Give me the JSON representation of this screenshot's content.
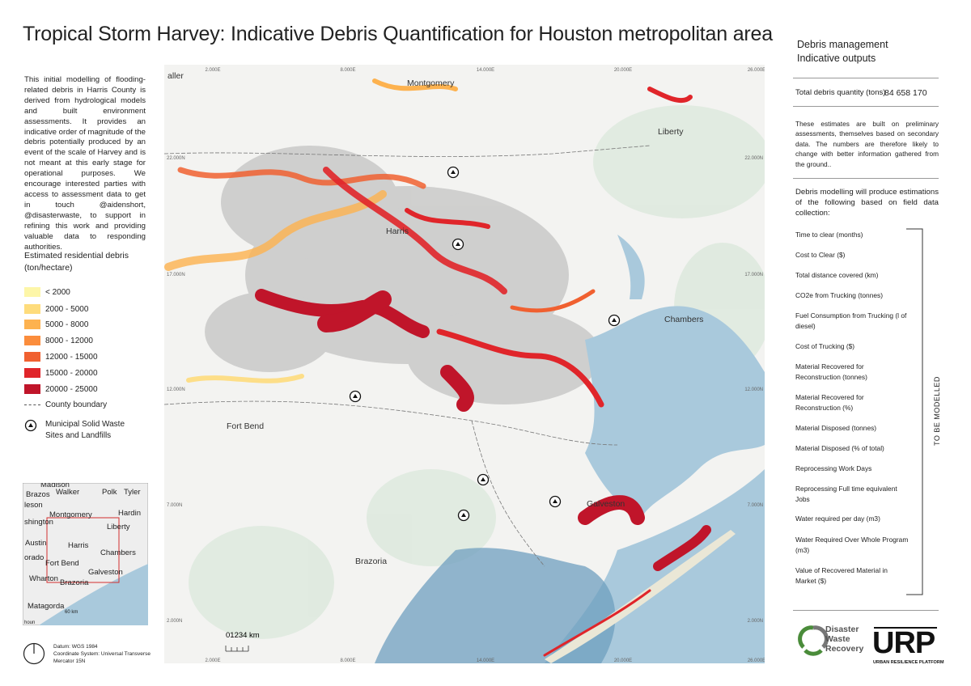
{
  "header": {
    "title": "Tropical Storm Harvey: Indicative Debris Quantification for Houston metropolitan area"
  },
  "intro": "This initial modelling of flooding-related debris in Harris County is derived from hydrological models and built environment assessments. It provides an indicative order of magnitude of the debris potentially produced by an event of the scale of Harvey and is not meant at this early stage for operational purposes. We encourage interested parties with access to assessment data to get in touch @aidenshort, @disasterwaste, to support in refining this work and providing valuable data to responding authorities.",
  "legend": {
    "title": "Estimated residential debris (ton/hectare)",
    "items": [
      {
        "label": "< 2000",
        "color": "#fdf6a8"
      },
      {
        "label": "2000 - 5000",
        "color": "#fedc7c"
      },
      {
        "label": "5000 - 8000",
        "color": "#fdb24f"
      },
      {
        "label": "8000 - 12000",
        "color": "#fb8d3c"
      },
      {
        "label": "12000 - 15000",
        "color": "#f06030"
      },
      {
        "label": "15000 - 20000",
        "color": "#e0252a"
      },
      {
        "label": "20000 - 25000",
        "color": "#c0152a"
      }
    ],
    "county_boundary": "County boundary",
    "msw_sites": "Municipal Solid Waste Sites and Landfills"
  },
  "map": {
    "place_labels": [
      "aller",
      "Montgomery",
      "Liberty",
      "Harris",
      "Chambers",
      "Fort Bend",
      "Galveston",
      "Brazoria"
    ],
    "x_coords": [
      "2.000E",
      "8.000E",
      "14.000E",
      "20.000E",
      "26.000E"
    ],
    "y_coords": [
      "22.000N",
      "17.000N",
      "12.000N",
      "7.000N",
      "2.000N"
    ],
    "scale": "01234 km"
  },
  "inset": {
    "labels": [
      "Madison",
      "Brazos",
      "Walker",
      "Polk",
      "Tyler",
      "leson",
      "Montgomery",
      "Hardin",
      "shington",
      "Liberty",
      "Austin",
      "Harris",
      "orado",
      "Chambers",
      "Fort Bend",
      "Galveston",
      "Wharton",
      "Brazoria",
      "Matagorda",
      "60 km",
      "houn"
    ]
  },
  "datum": [
    "Datum: WGS 1984",
    "Coordinate System: Universal Transverse Mercator 15N"
  ],
  "panel": {
    "heading": [
      "Debris management",
      "Indicative outputs"
    ],
    "total_label": "Total debris quantity  (tons)",
    "total_value": "84 658 170",
    "note": "These estimates are built on preliminary assessments, themselves based on secondary data. The numbers are therefore likely to change with better information gathered from the ground..",
    "modelling_intro": "Debris modelling will produce estimations of the following based on field data collection:",
    "outputs": [
      "Time to clear (months)",
      "Cost to Clear ($)",
      "Total distance covered (km)",
      "CO2e from Trucking (tonnes)",
      "Fuel Consumption from Trucking (l of diesel)",
      "Cost of Trucking ($)",
      "Material Recovered for Reconstruction (tonnes)",
      "Material Recovered for Reconstruction (%)",
      "Material Disposed (tonnes)",
      "Material Disposed (% of total)",
      "Reprocessing Work Days",
      "Reprocessing Full time equivalent Jobs",
      "Water required per day (m3)",
      "Water Required Over Whole Program (m3)",
      "Value of Recovered Material in Market ($)"
    ],
    "bracket_label": "TO BE MODELLED"
  },
  "logos": {
    "dwr": [
      "Disaster",
      "Waste",
      "Recovery"
    ],
    "urp": "URP",
    "urp_sub": "URBAN RESILIENCE PLATFORM"
  }
}
